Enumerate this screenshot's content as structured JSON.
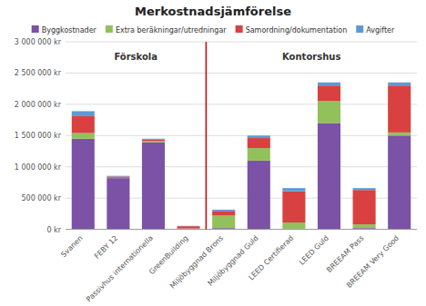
{
  "chart_data": {
    "type": "bar",
    "stacked": true,
    "title": "Merkostnadsjämförelse",
    "categories": [
      "Svanen",
      "FEBY 12",
      "Passivhus internationella",
      "GreenBuilding",
      "Miljöbyggnad Brons",
      "Miljöbyggnad Guld",
      "LEED Certifierad",
      "LEED Guld",
      "BREEAM Pass",
      "BREEAM Very Good"
    ],
    "series": [
      {
        "name": "Byggkostnader",
        "color": "#7B52A6",
        "values": [
          1450000,
          820000,
          1390000,
          10000,
          20000,
          1100000,
          10000,
          1700000,
          20000,
          1500000
        ]
      },
      {
        "name": "Extra beräkningar/utredningar",
        "color": "#92C15B",
        "values": [
          90000,
          5000,
          20000,
          5000,
          200000,
          200000,
          100000,
          350000,
          60000,
          50000
        ]
      },
      {
        "name": "Samordning/dokumentation",
        "color": "#D94040",
        "values": [
          270000,
          20000,
          30000,
          35000,
          75000,
          160000,
          500000,
          250000,
          550000,
          750000
        ]
      },
      {
        "name": "Avgifter",
        "color": "#5B9BD5",
        "values": [
          80000,
          10000,
          10000,
          5000,
          20000,
          40000,
          50000,
          50000,
          30000,
          50000
        ]
      }
    ],
    "ylim": [
      0,
      3000000
    ],
    "yticks": [
      {
        "value": 0,
        "label": "0 kr"
      },
      {
        "value": 500000,
        "label": "500 000 kr"
      },
      {
        "value": 1000000,
        "label": "1 000 000 kr"
      },
      {
        "value": 1500000,
        "label": "1 500 000 kr"
      },
      {
        "value": 2000000,
        "label": "2 000 000 kr"
      },
      {
        "value": 2500000,
        "label": "2 500 000 kr"
      },
      {
        "value": 3000000,
        "label": "3 000 000 kr"
      }
    ],
    "grid": true,
    "legend": "top",
    "annotations": [
      {
        "type": "text",
        "text": "Förskola",
        "x": 1.5,
        "y": 2850000
      },
      {
        "type": "text",
        "text": "Kontorshus",
        "x": 6.5,
        "y": 2850000
      },
      {
        "type": "line",
        "x": 3.5,
        "color": "#CC0000"
      }
    ]
  }
}
